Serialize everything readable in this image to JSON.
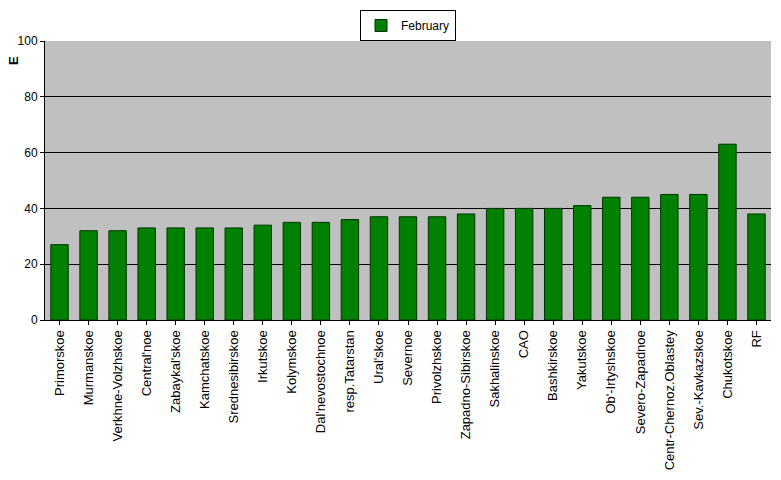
{
  "chart_data": {
    "type": "bar",
    "y_label": "E",
    "categories": [
      "Primorskoe",
      "Murmanskoe",
      "Verkhne-Volzhskoe",
      "Central'noe",
      "Zabaykal'skoe",
      "Kamchatskoe",
      "Srednesibirskoe",
      "Irkutskoe",
      "Kolymskoe",
      "Dal'nevostochnoe",
      "resp.Tatarstan",
      "Ural'skoe",
      "Severnoe",
      "Privolzhskoe",
      "Zapadno-Sibirskoe",
      "Sakhalinskoe",
      "CAO",
      "Bashkirskoe",
      "Yakutskoe",
      "Ob'-Irtyshskoe",
      "Severo-Zapadnoe",
      "Centr-Chernoz.Oblastey",
      "Sev.-Kavkazskoe",
      "Chukotskoe",
      "RF"
    ],
    "series": [
      {
        "name": "February",
        "color": "#008000",
        "values": [
          27,
          32,
          32,
          33,
          33,
          33,
          33,
          34,
          35,
          35,
          36,
          37,
          37,
          37,
          38,
          40,
          40,
          40,
          41,
          44,
          44,
          45,
          45,
          63,
          38
        ]
      }
    ],
    "ylim": [
      0,
      100
    ],
    "yticks": [
      0,
      20,
      40,
      60,
      80,
      100
    ],
    "grid": true,
    "legend": "top"
  }
}
